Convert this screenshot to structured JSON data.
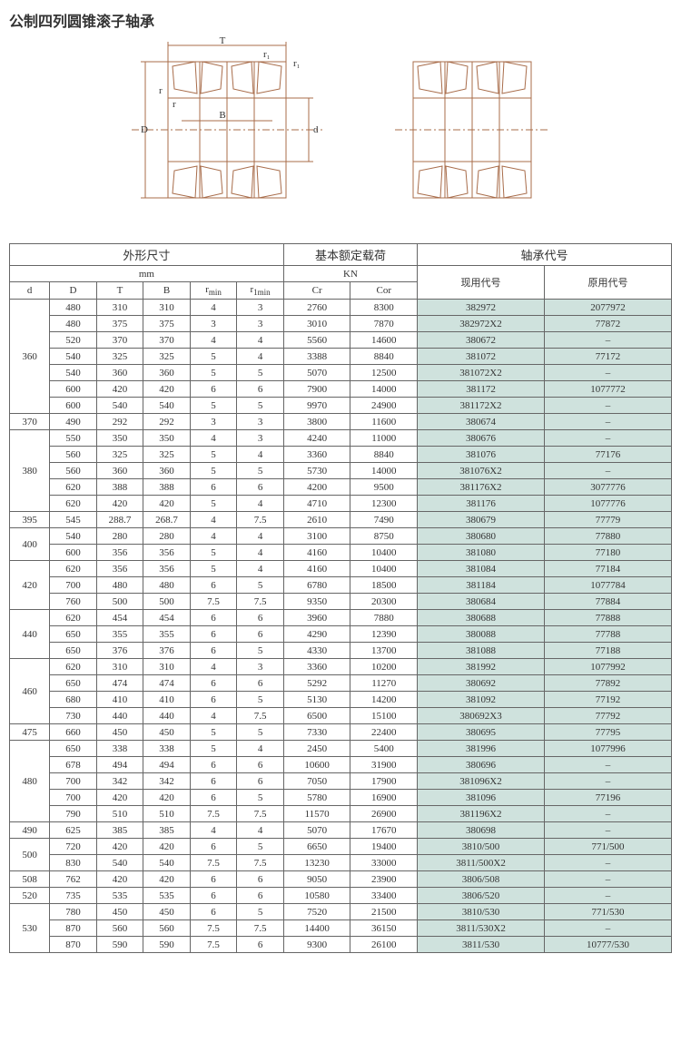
{
  "title": "公制四列圆锥滚子轴承",
  "diagram_labels": {
    "T": "T",
    "r1a": "r₁",
    "r1b": "r₁",
    "r": "r",
    "rb": "r",
    "B": "B",
    "D": "D",
    "d": "d"
  },
  "header": {
    "group1": "外形尺寸",
    "group2": "基本额定载荷",
    "group3": "轴承代号",
    "unit1": "mm",
    "unit2": "KN",
    "code1": "现用代号",
    "code2": "原用代号",
    "cols": {
      "d": "d",
      "D": "D",
      "T": "T",
      "B": "B",
      "rmin": "r",
      "r1min": "r",
      "Cr": "Cr",
      "Cor": "Cor"
    },
    "sub_min": "min",
    "sub_1min": "1min"
  },
  "groups": [
    {
      "d": "360",
      "rows": [
        [
          "480",
          "310",
          "310",
          "4",
          "3",
          "2760",
          "8300",
          "382972",
          "2077972"
        ],
        [
          "480",
          "375",
          "375",
          "3",
          "3",
          "3010",
          "7870",
          "382972X2",
          "77872"
        ],
        [
          "520",
          "370",
          "370",
          "4",
          "4",
          "5560",
          "14600",
          "380672",
          "–"
        ],
        [
          "540",
          "325",
          "325",
          "5",
          "4",
          "3388",
          "8840",
          "381072",
          "77172"
        ],
        [
          "540",
          "360",
          "360",
          "5",
          "5",
          "5070",
          "12500",
          "381072X2",
          "–"
        ],
        [
          "600",
          "420",
          "420",
          "6",
          "6",
          "7900",
          "14000",
          "381172",
          "1077772"
        ],
        [
          "600",
          "540",
          "540",
          "5",
          "5",
          "9970",
          "24900",
          "381172X2",
          "–"
        ]
      ]
    },
    {
      "d": "370",
      "rows": [
        [
          "490",
          "292",
          "292",
          "3",
          "3",
          "3800",
          "11600",
          "380674",
          "–"
        ]
      ]
    },
    {
      "d": "380",
      "rows": [
        [
          "550",
          "350",
          "350",
          "4",
          "3",
          "4240",
          "11000",
          "380676",
          "–"
        ],
        [
          "560",
          "325",
          "325",
          "5",
          "4",
          "3360",
          "8840",
          "381076",
          "77176"
        ],
        [
          "560",
          "360",
          "360",
          "5",
          "5",
          "5730",
          "14000",
          "381076X2",
          "–"
        ],
        [
          "620",
          "388",
          "388",
          "6",
          "6",
          "4200",
          "9500",
          "381176X2",
          "3077776"
        ],
        [
          "620",
          "420",
          "420",
          "5",
          "4",
          "4710",
          "12300",
          "381176",
          "1077776"
        ]
      ]
    },
    {
      "d": "395",
      "rows": [
        [
          "545",
          "288.7",
          "268.7",
          "4",
          "7.5",
          "2610",
          "7490",
          "380679",
          "77779"
        ]
      ]
    },
    {
      "d": "400",
      "rows": [
        [
          "540",
          "280",
          "280",
          "4",
          "4",
          "3100",
          "8750",
          "380680",
          "77880"
        ],
        [
          "600",
          "356",
          "356",
          "5",
          "4",
          "4160",
          "10400",
          "381080",
          "77180"
        ]
      ]
    },
    {
      "d": "420",
      "rows": [
        [
          "620",
          "356",
          "356",
          "5",
          "4",
          "4160",
          "10400",
          "381084",
          "77184"
        ],
        [
          "700",
          "480",
          "480",
          "6",
          "5",
          "6780",
          "18500",
          "381184",
          "1077784"
        ],
        [
          "760",
          "500",
          "500",
          "7.5",
          "7.5",
          "9350",
          "20300",
          "380684",
          "77884"
        ]
      ]
    },
    {
      "d": "440",
      "rows": [
        [
          "620",
          "454",
          "454",
          "6",
          "6",
          "3960",
          "7880",
          "380688",
          "77888"
        ],
        [
          "650",
          "355",
          "355",
          "6",
          "6",
          "4290",
          "12390",
          "380088",
          "77788"
        ],
        [
          "650",
          "376",
          "376",
          "6",
          "5",
          "4330",
          "13700",
          "381088",
          "77188"
        ]
      ]
    },
    {
      "d": "460",
      "rows": [
        [
          "620",
          "310",
          "310",
          "4",
          "3",
          "3360",
          "10200",
          "381992",
          "1077992"
        ],
        [
          "650",
          "474",
          "474",
          "6",
          "6",
          "5292",
          "11270",
          "380692",
          "77892"
        ],
        [
          "680",
          "410",
          "410",
          "6",
          "5",
          "5130",
          "14200",
          "381092",
          "77192"
        ],
        [
          "730",
          "440",
          "440",
          "4",
          "7.5",
          "6500",
          "15100",
          "380692X3",
          "77792"
        ]
      ]
    },
    {
      "d": "475",
      "rows": [
        [
          "660",
          "450",
          "450",
          "5",
          "5",
          "7330",
          "22400",
          "380695",
          "77795"
        ]
      ]
    },
    {
      "d": "480",
      "rows": [
        [
          "650",
          "338",
          "338",
          "5",
          "4",
          "2450",
          "5400",
          "381996",
          "1077996"
        ],
        [
          "678",
          "494",
          "494",
          "6",
          "6",
          "10600",
          "31900",
          "380696",
          "–"
        ],
        [
          "700",
          "342",
          "342",
          "6",
          "6",
          "7050",
          "17900",
          "381096X2",
          "–"
        ],
        [
          "700",
          "420",
          "420",
          "6",
          "5",
          "5780",
          "16900",
          "381096",
          "77196"
        ],
        [
          "790",
          "510",
          "510",
          "7.5",
          "7.5",
          "11570",
          "26900",
          "381196X2",
          "–"
        ]
      ]
    },
    {
      "d": "490",
      "rows": [
        [
          "625",
          "385",
          "385",
          "4",
          "4",
          "5070",
          "17670",
          "380698",
          "–"
        ]
      ]
    },
    {
      "d": "500",
      "rows": [
        [
          "720",
          "420",
          "420",
          "6",
          "5",
          "6650",
          "19400",
          "3810/500",
          "771/500"
        ],
        [
          "830",
          "540",
          "540",
          "7.5",
          "7.5",
          "13230",
          "33000",
          "3811/500X2",
          "–"
        ]
      ]
    },
    {
      "d": "508",
      "rows": [
        [
          "762",
          "420",
          "420",
          "6",
          "6",
          "9050",
          "23900",
          "3806/508",
          "–"
        ]
      ]
    },
    {
      "d": "520",
      "rows": [
        [
          "735",
          "535",
          "535",
          "6",
          "6",
          "10580",
          "33400",
          "3806/520",
          "–"
        ]
      ]
    },
    {
      "d": "530",
      "rows": [
        [
          "780",
          "450",
          "450",
          "6",
          "5",
          "7520",
          "21500",
          "3810/530",
          "771/530"
        ],
        [
          "870",
          "560",
          "560",
          "7.5",
          "7.5",
          "14400",
          "36150",
          "3811/530X2",
          "–"
        ],
        [
          "870",
          "590",
          "590",
          "7.5",
          "6",
          "9300",
          "26100",
          "3811/530",
          "10777/530"
        ]
      ]
    }
  ],
  "colors": {
    "code_bg": "#cfe2dd",
    "border": "#666666",
    "text": "#333333",
    "diagram_stroke": "#a86c4a",
    "diagram_fill": "#ffffff"
  },
  "col_widths_pct": [
    6,
    7,
    7,
    7,
    7,
    7,
    10,
    10,
    19,
    19
  ]
}
